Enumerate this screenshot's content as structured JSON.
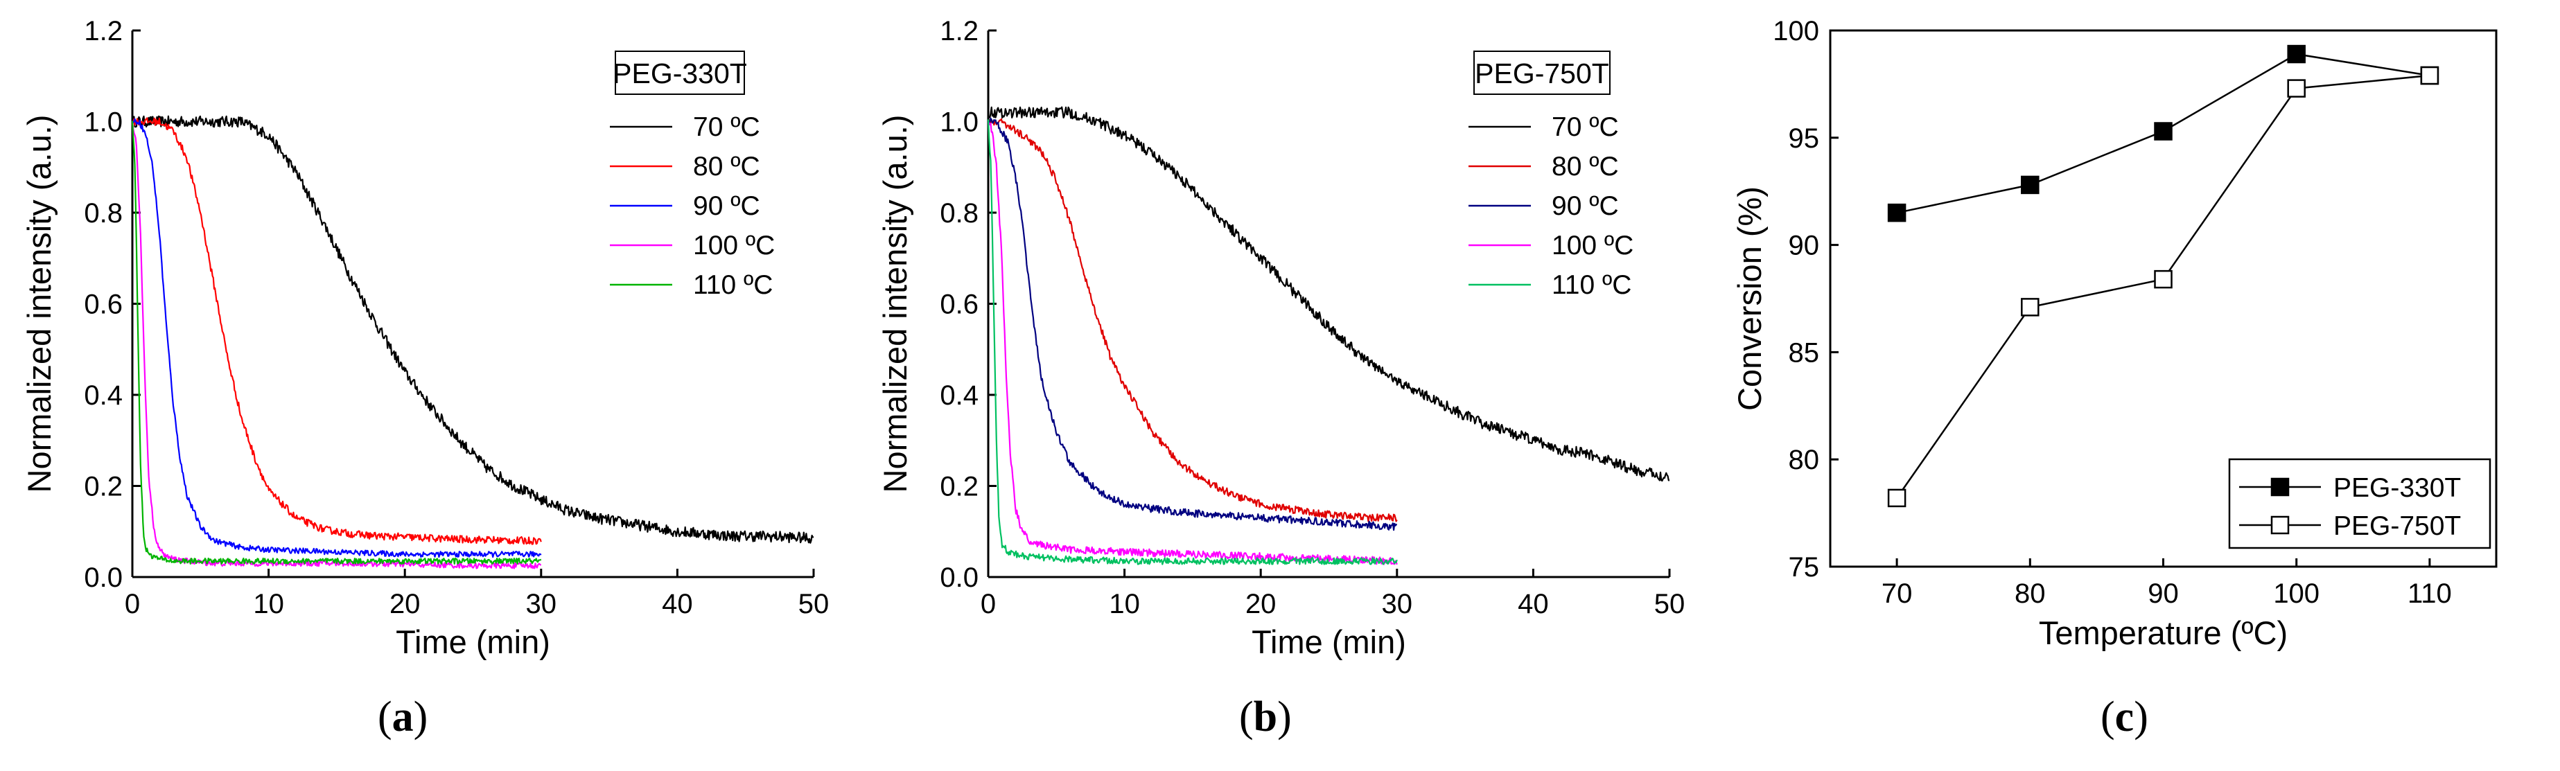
{
  "chart_data": [
    {
      "type": "line",
      "panel": "a",
      "legend_title": "PEG-330T",
      "xlabel": "Time (min)",
      "ylabel": "Normalized intensity (a.u.)",
      "xlim": [
        0,
        50
      ],
      "ylim": [
        0,
        1.2
      ],
      "xticks": [
        "0",
        "10",
        "20",
        "30",
        "40",
        "50"
      ],
      "yticks": [
        "0.0",
        "0.2",
        "0.4",
        "0.6",
        "0.8",
        "1.0",
        "1.2"
      ],
      "legend_position": "top-right",
      "series": [
        {
          "name": "70 ºC",
          "color": "#000000",
          "x": [
            0,
            2,
            4,
            6,
            8,
            10,
            12,
            14,
            16,
            18,
            20,
            22,
            24,
            26,
            28,
            30,
            32,
            34,
            36,
            38,
            40,
            42,
            44,
            46,
            48,
            50
          ],
          "y": [
            1.0,
            1.0,
            1.0,
            1.0,
            1.0,
            0.97,
            0.89,
            0.78,
            0.66,
            0.55,
            0.45,
            0.37,
            0.3,
            0.24,
            0.2,
            0.17,
            0.145,
            0.13,
            0.12,
            0.11,
            0.1,
            0.095,
            0.09,
            0.09,
            0.088,
            0.085
          ],
          "noise": 0.012
        },
        {
          "name": "80 ºC",
          "color": "#ff0000",
          "x": [
            0,
            1,
            2,
            3,
            4,
            5,
            6,
            7,
            8,
            9,
            10,
            12,
            14,
            16,
            18,
            20,
            22,
            24,
            26,
            28,
            30
          ],
          "y": [
            1.0,
            1.0,
            1.0,
            0.98,
            0.92,
            0.8,
            0.64,
            0.48,
            0.35,
            0.26,
            0.19,
            0.13,
            0.105,
            0.095,
            0.09,
            0.088,
            0.085,
            0.083,
            0.082,
            0.08,
            0.08
          ],
          "noise": 0.008
        },
        {
          "name": "90 ºC",
          "color": "#0000ff",
          "x": [
            0,
            0.5,
            1,
            1.5,
            2,
            2.5,
            3,
            3.5,
            4,
            5,
            6,
            8,
            10,
            15,
            20,
            25,
            30
          ],
          "y": [
            1.0,
            1.0,
            0.97,
            0.9,
            0.75,
            0.55,
            0.38,
            0.26,
            0.18,
            0.11,
            0.08,
            0.065,
            0.06,
            0.055,
            0.05,
            0.05,
            0.05
          ],
          "noise": 0.006
        },
        {
          "name": "100 ºC",
          "color": "#ff00ff",
          "x": [
            0,
            0.3,
            0.6,
            0.9,
            1.2,
            1.6,
            2,
            2.5,
            3,
            4,
            6,
            10,
            15,
            20,
            25,
            30
          ],
          "y": [
            1.0,
            0.95,
            0.75,
            0.45,
            0.22,
            0.1,
            0.06,
            0.045,
            0.04,
            0.035,
            0.03,
            0.03,
            0.03,
            0.028,
            0.025,
            0.025
          ],
          "noise": 0.006
        },
        {
          "name": "110 ºC",
          "color": "#00b400",
          "x": [
            0,
            0.2,
            0.4,
            0.6,
            0.8,
            1,
            1.5,
            2,
            3,
            5,
            10,
            15,
            20,
            25,
            30
          ],
          "y": [
            1.0,
            0.9,
            0.55,
            0.25,
            0.1,
            0.06,
            0.045,
            0.04,
            0.035,
            0.035,
            0.035,
            0.035,
            0.035,
            0.035,
            0.035
          ],
          "noise": 0.006
        }
      ]
    },
    {
      "type": "line",
      "panel": "b",
      "legend_title": "PEG-750T",
      "xlabel": "Time (min)",
      "ylabel": "Normalized intensity (a.u.)",
      "xlim": [
        0,
        50
      ],
      "ylim": [
        0,
        1.2
      ],
      "xticks": [
        "0",
        "10",
        "20",
        "30",
        "40",
        "50"
      ],
      "yticks": [
        "0.0",
        "0.2",
        "0.4",
        "0.6",
        "0.8",
        "1.0",
        "1.2"
      ],
      "legend_position": "top-right",
      "series": [
        {
          "name": "70 ºC",
          "color": "#000000",
          "x": [
            0,
            2,
            4,
            6,
            8,
            10,
            12,
            14,
            16,
            18,
            20,
            22,
            24,
            26,
            28,
            30,
            32,
            34,
            36,
            38,
            40,
            42,
            44,
            46,
            48,
            50
          ],
          "y": [
            1.02,
            1.02,
            1.02,
            1.02,
            1.0,
            0.97,
            0.93,
            0.88,
            0.82,
            0.76,
            0.7,
            0.64,
            0.58,
            0.52,
            0.47,
            0.43,
            0.4,
            0.37,
            0.34,
            0.32,
            0.3,
            0.28,
            0.27,
            0.25,
            0.23,
            0.22
          ],
          "noise": 0.012
        },
        {
          "name": "80 ºC",
          "color": "#e00000",
          "x": [
            0,
            1,
            2,
            3,
            4,
            5,
            6,
            7,
            8,
            9,
            10,
            12,
            14,
            16,
            18,
            20,
            22,
            24,
            26,
            28,
            30
          ],
          "y": [
            1.0,
            1.0,
            0.98,
            0.96,
            0.93,
            0.87,
            0.78,
            0.67,
            0.57,
            0.48,
            0.42,
            0.32,
            0.25,
            0.21,
            0.18,
            0.16,
            0.15,
            0.14,
            0.135,
            0.13,
            0.13
          ],
          "noise": 0.008
        },
        {
          "name": "90 ºC",
          "color": "#000080",
          "x": [
            0,
            0.5,
            1,
            1.5,
            2,
            2.5,
            3,
            3.5,
            4,
            5,
            6,
            8,
            10,
            12,
            15,
            20,
            25,
            30
          ],
          "y": [
            1.0,
            1.0,
            0.98,
            0.95,
            0.88,
            0.78,
            0.64,
            0.52,
            0.42,
            0.32,
            0.25,
            0.19,
            0.16,
            0.15,
            0.14,
            0.13,
            0.12,
            0.11
          ],
          "noise": 0.008
        },
        {
          "name": "100 ºC",
          "color": "#ff00ff",
          "x": [
            0,
            0.3,
            0.6,
            1,
            1.3,
            1.6,
            2,
            2.5,
            3,
            4,
            6,
            10,
            15,
            20,
            25,
            30
          ],
          "y": [
            1.0,
            0.98,
            0.9,
            0.7,
            0.45,
            0.28,
            0.15,
            0.1,
            0.08,
            0.07,
            0.06,
            0.055,
            0.05,
            0.045,
            0.04,
            0.035
          ],
          "noise": 0.008
        },
        {
          "name": "110 ºC",
          "color": "#00c060",
          "x": [
            0,
            0.2,
            0.4,
            0.6,
            0.8,
            1,
            1.5,
            2,
            3,
            5,
            10,
            15,
            20,
            25,
            30
          ],
          "y": [
            1.0,
            0.9,
            0.6,
            0.3,
            0.12,
            0.07,
            0.055,
            0.05,
            0.045,
            0.04,
            0.035,
            0.035,
            0.035,
            0.035,
            0.035
          ],
          "noise": 0.007
        }
      ]
    },
    {
      "type": "line",
      "panel": "c",
      "xlabel": "Temperature (ºC)",
      "ylabel": "Conversion (%)",
      "xlim": [
        65,
        115
      ],
      "ylim": [
        75,
        100
      ],
      "xticks": [
        "70",
        "80",
        "90",
        "100",
        "110"
      ],
      "yticks": [
        "75",
        "80",
        "85",
        "90",
        "95",
        "100"
      ],
      "legend_position": "bottom-right",
      "series": [
        {
          "name": "PEG-330T",
          "marker": "filled-square",
          "color": "#000000",
          "x": [
            70,
            80,
            90,
            100,
            110
          ],
          "y": [
            91.5,
            92.8,
            95.3,
            98.9,
            97.9
          ]
        },
        {
          "name": "PEG-750T",
          "marker": "open-square",
          "color": "#000000",
          "x": [
            70,
            80,
            90,
            100,
            110
          ],
          "y": [
            78.2,
            87.1,
            88.4,
            97.3,
            97.9
          ]
        }
      ]
    }
  ],
  "captions": {
    "a_label": "a",
    "b_label": "b",
    "c_label": "c"
  }
}
